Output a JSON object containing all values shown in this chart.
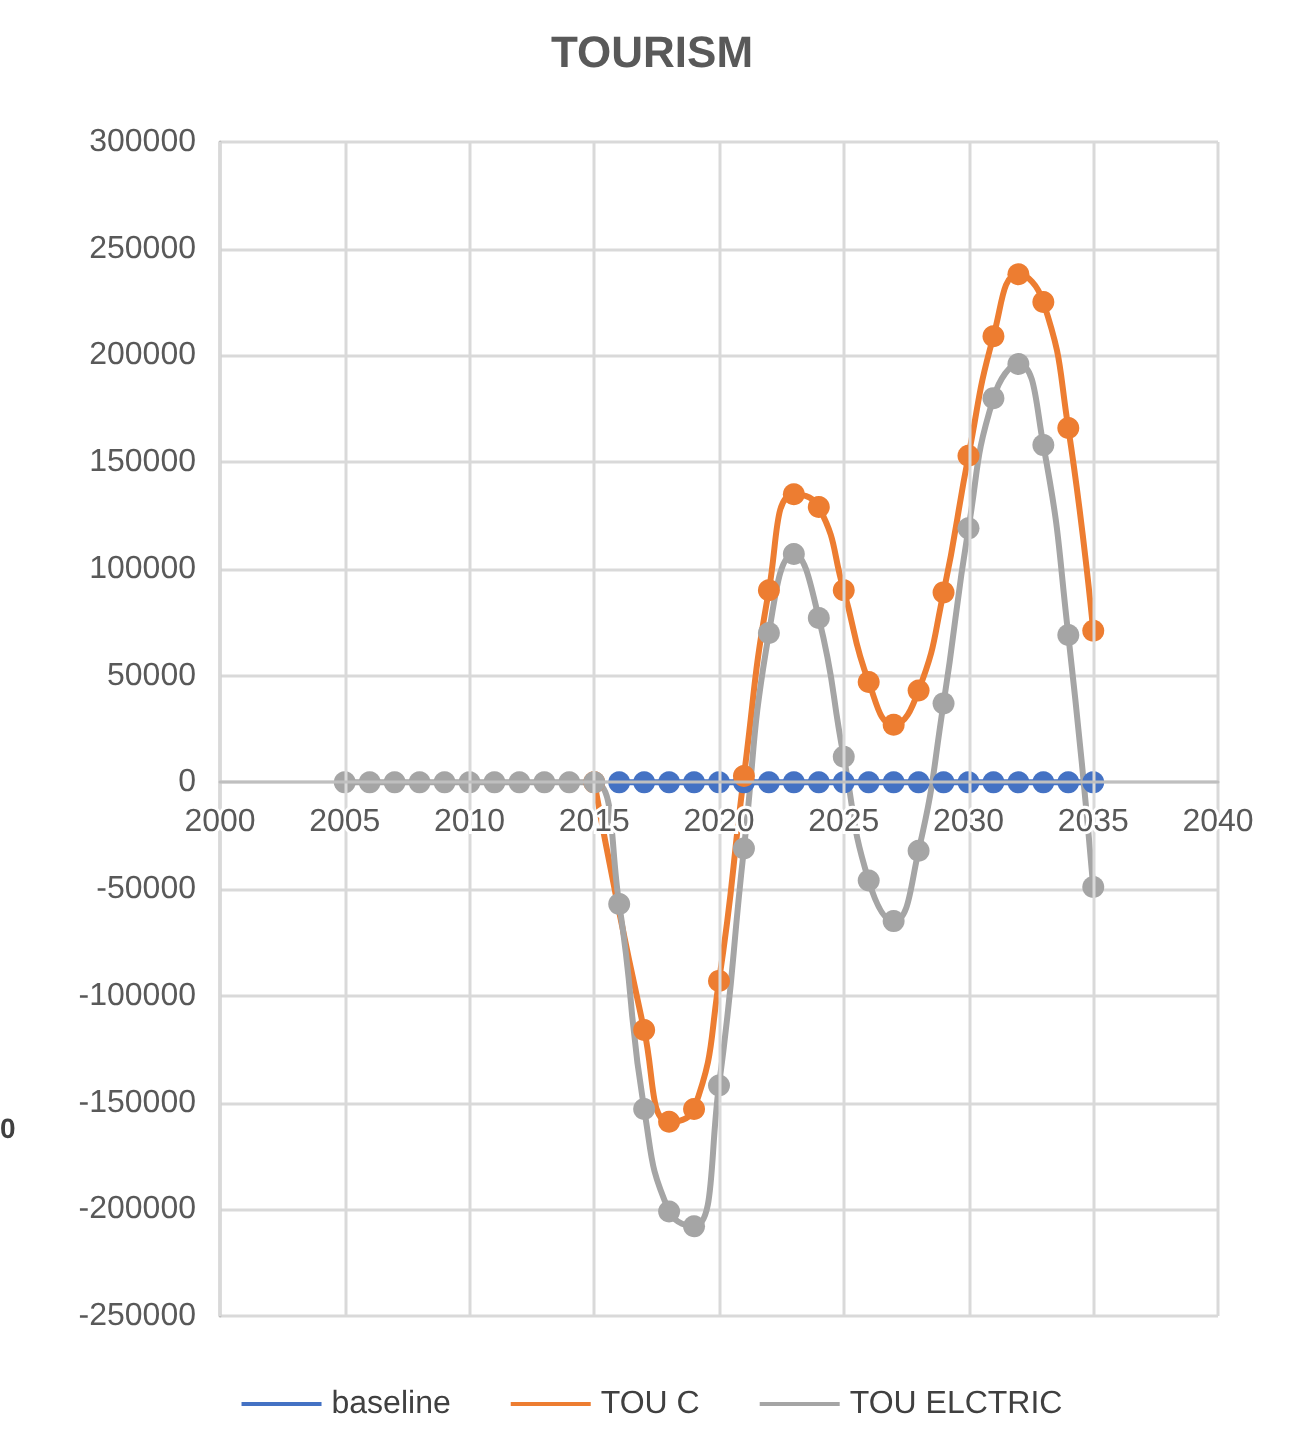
{
  "chart_data": {
    "type": "line",
    "title": "TOURISM",
    "annotations": [
      "0"
    ],
    "x": [
      2005,
      2006,
      2007,
      2008,
      2009,
      2010,
      2011,
      2012,
      2013,
      2014,
      2015,
      2016,
      2017,
      2018,
      2019,
      2020,
      2021,
      2022,
      2023,
      2024,
      2025,
      2026,
      2027,
      2028,
      2029,
      2030,
      2031,
      2032,
      2033,
      2034,
      2035
    ],
    "series": [
      {
        "name": "baseline",
        "color": "#4472c4",
        "values": [
          null,
          null,
          null,
          null,
          null,
          null,
          null,
          null,
          null,
          null,
          null,
          0,
          0,
          0,
          0,
          0,
          0,
          0,
          0,
          0,
          0,
          0,
          0,
          0,
          0,
          0,
          0,
          0,
          0,
          0,
          0
        ]
      },
      {
        "name": "TOU C",
        "color": "#ed7d31",
        "values": [
          null,
          null,
          null,
          null,
          null,
          null,
          null,
          null,
          null,
          null,
          0,
          null,
          -116000,
          -159000,
          -153000,
          -93000,
          3000,
          90000,
          135000,
          129000,
          90000,
          47000,
          27000,
          43000,
          89000,
          153000,
          209000,
          238000,
          225000,
          166000,
          71000
        ]
      },
      {
        "name": "TOU ELCTRIC",
        "color": "#a5a5a5",
        "values": [
          0,
          0,
          0,
          0,
          0,
          0,
          0,
          0,
          0,
          0,
          0,
          -57000,
          -153000,
          -201000,
          -208000,
          -142000,
          -31000,
          70000,
          107000,
          77000,
          12000,
          -46000,
          -65000,
          -32000,
          37000,
          119000,
          180000,
          196000,
          158000,
          69000,
          -49000
        ]
      }
    ],
    "xlim": [
      2000,
      2040
    ],
    "xticks": [
      2000,
      2005,
      2010,
      2015,
      2020,
      2025,
      2030,
      2035,
      2040
    ],
    "ylim": [
      -250000,
      300000
    ],
    "yticks": [
      -250000,
      -200000,
      -150000,
      -100000,
      -50000,
      0,
      50000,
      100000,
      150000,
      200000,
      250000,
      300000
    ],
    "grid": true,
    "legend": "bottom",
    "marker": "circle",
    "line_style": "solid"
  }
}
